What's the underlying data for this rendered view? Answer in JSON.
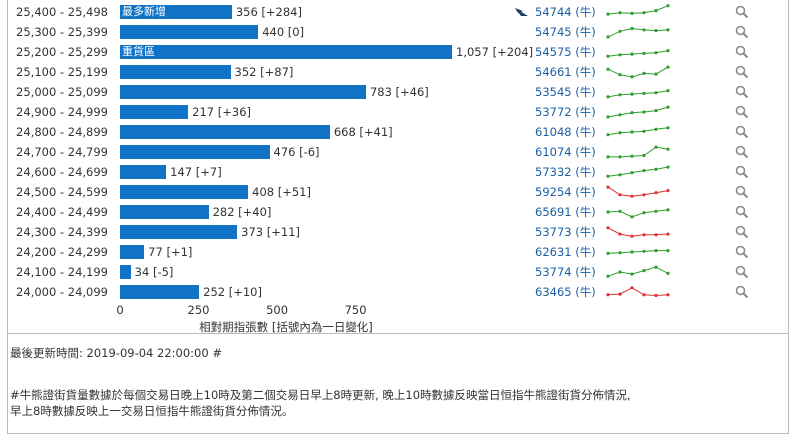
{
  "rows": [
    {
      "range": "25,400 - 25,498",
      "value": 356,
      "value_label": "356 [+284]",
      "tag": "最多新增",
      "code": "54744 (牛)",
      "flag": true,
      "spark": [
        [
          0,
          0.35
        ],
        [
          1,
          0.45
        ],
        [
          2,
          0.4
        ],
        [
          3,
          0.45
        ],
        [
          4,
          0.6
        ],
        [
          5,
          0.95
        ]
      ]
    },
    {
      "range": "25,300 - 25,399",
      "value": 440,
      "value_label": "440 [0]",
      "tag": "",
      "code": "54745 (牛)",
      "flag": false,
      "spark": [
        [
          0,
          0.15
        ],
        [
          1,
          0.55
        ],
        [
          2,
          0.75
        ],
        [
          3,
          0.65
        ],
        [
          4,
          0.6
        ],
        [
          5,
          0.65
        ]
      ]
    },
    {
      "range": "25,200 - 25,299",
      "value": 1057,
      "value_label": "1,057 [+204]",
      "tag": "重貨區",
      "code": "54575 (牛)",
      "flag": false,
      "spark": [
        [
          0,
          0.2
        ],
        [
          1,
          0.3
        ],
        [
          2,
          0.35
        ],
        [
          3,
          0.4
        ],
        [
          4,
          0.45
        ],
        [
          5,
          0.6
        ]
      ]
    },
    {
      "range": "25,100 - 25,199",
      "value": 352,
      "value_label": "352 [+87]",
      "tag": "",
      "code": "54661 (牛)",
      "flag": false,
      "spark": [
        [
          0,
          0.7
        ],
        [
          1,
          0.3
        ],
        [
          2,
          0.15
        ],
        [
          3,
          0.4
        ],
        [
          4,
          0.35
        ],
        [
          5,
          0.85
        ]
      ]
    },
    {
      "range": "25,000 - 25,099",
      "value": 783,
      "value_label": "783 [+46]",
      "tag": "",
      "code": "53545 (牛)",
      "flag": false,
      "spark": [
        [
          0,
          0.15
        ],
        [
          1,
          0.3
        ],
        [
          2,
          0.35
        ],
        [
          3,
          0.4
        ],
        [
          4,
          0.45
        ],
        [
          5,
          0.6
        ]
      ]
    },
    {
      "range": "24,900 - 24,999",
      "value": 217,
      "value_label": "217 [+36]",
      "tag": "",
      "code": "53772 (牛)",
      "flag": false,
      "spark": [
        [
          0,
          0.15
        ],
        [
          1,
          0.3
        ],
        [
          2,
          0.45
        ],
        [
          3,
          0.5
        ],
        [
          4,
          0.6
        ],
        [
          5,
          0.85
        ]
      ]
    },
    {
      "range": "24,800 - 24,899",
      "value": 668,
      "value_label": "668 [+41]",
      "tag": "",
      "code": "61048 (牛)",
      "flag": false,
      "spark": [
        [
          0,
          0.3
        ],
        [
          1,
          0.45
        ],
        [
          2,
          0.5
        ],
        [
          3,
          0.55
        ],
        [
          4,
          0.7
        ],
        [
          5,
          0.8
        ]
      ]
    },
    {
      "range": "24,700 - 24,799",
      "value": 476,
      "value_label": "476 [-6]",
      "tag": "",
      "code": "61074 (牛)",
      "flag": false,
      "spark": [
        [
          0,
          0.15
        ],
        [
          1,
          0.15
        ],
        [
          2,
          0.2
        ],
        [
          3,
          0.25
        ],
        [
          4,
          0.85
        ],
        [
          5,
          0.7
        ]
      ]
    },
    {
      "range": "24,600 - 24,699",
      "value": 147,
      "value_label": "147 [+7]",
      "tag": "",
      "code": "57332 (牛)",
      "flag": false,
      "spark": [
        [
          0,
          0.2
        ],
        [
          1,
          0.3
        ],
        [
          2,
          0.45
        ],
        [
          3,
          0.6
        ],
        [
          4,
          0.7
        ],
        [
          5,
          0.85
        ]
      ]
    },
    {
      "range": "24,500 - 24,599",
      "value": 408,
      "value_label": "408 [+51]",
      "tag": "",
      "code": "59254 (牛)",
      "flag": false,
      "spark": [
        [
          0,
          0.85
        ],
        [
          1,
          0.3
        ],
        [
          2,
          0.2
        ],
        [
          3,
          0.3
        ],
        [
          4,
          0.45
        ],
        [
          5,
          0.6
        ]
      ],
      "spark_color": "#e03131"
    },
    {
      "range": "24,400 - 24,499",
      "value": 282,
      "value_label": "282 [+40]",
      "tag": "",
      "code": "65691 (牛)",
      "flag": false,
      "spark": [
        [
          0,
          0.5
        ],
        [
          1,
          0.55
        ],
        [
          2,
          0.15
        ],
        [
          3,
          0.45
        ],
        [
          4,
          0.55
        ],
        [
          5,
          0.65
        ]
      ]
    },
    {
      "range": "24,300 - 24,399",
      "value": 373,
      "value_label": "373 [+11]",
      "tag": "",
      "code": "53773 (牛)",
      "flag": false,
      "spark": [
        [
          0,
          0.8
        ],
        [
          1,
          0.35
        ],
        [
          2,
          0.2
        ],
        [
          3,
          0.3
        ],
        [
          4,
          0.3
        ],
        [
          5,
          0.35
        ]
      ],
      "spark_color": "#e03131"
    },
    {
      "range": "24,200 - 24,299",
      "value": 77,
      "value_label": "77 [+1]",
      "tag": "",
      "code": "62631 (牛)",
      "flag": false,
      "spark": [
        [
          0,
          0.4
        ],
        [
          1,
          0.45
        ],
        [
          2,
          0.5
        ],
        [
          3,
          0.55
        ],
        [
          4,
          0.6
        ],
        [
          5,
          0.6
        ]
      ]
    },
    {
      "range": "24,100 - 24,199",
      "value": 34,
      "value_label": "34 [-5]",
      "tag": "",
      "code": "53774 (牛)",
      "flag": false,
      "spark": [
        [
          0,
          0.2
        ],
        [
          1,
          0.5
        ],
        [
          2,
          0.35
        ],
        [
          3,
          0.6
        ],
        [
          4,
          0.85
        ],
        [
          5,
          0.4
        ]
      ]
    },
    {
      "range": "24,000 - 24,099",
      "value": 252,
      "value_label": "252 [+10]",
      "tag": "",
      "code": "63465 (牛)",
      "flag": false,
      "spark": [
        [
          0,
          0.3
        ],
        [
          1,
          0.35
        ],
        [
          2,
          0.8
        ],
        [
          3,
          0.3
        ],
        [
          4,
          0.25
        ],
        [
          5,
          0.3
        ]
      ],
      "spark_color": "#e03131"
    }
  ],
  "axis": {
    "ticks": [
      0,
      250,
      500,
      750
    ],
    "max": 1057,
    "title": "相對期指張數 [括號內為一日變化]"
  },
  "colors": {
    "bar": "#1173c6",
    "spark_up": "#2e9e2e",
    "spark_down": "#e03131",
    "link": "#1b5fa6"
  },
  "icons": {
    "flag": "flag-icon",
    "search": "search-icon"
  },
  "footer": {
    "updated": "最後更新時間: 2019-09-04 22:00:00 #",
    "note1": "#牛熊證街貨量數據於每個交易日晚上10時及第二個交易日早上8時更新, 晚上10時數據反映當日恒指牛熊證街貨分佈情況,",
    "note2": "早上8時數據反映上一交易日恒指牛熊證街貨分佈情況。"
  }
}
